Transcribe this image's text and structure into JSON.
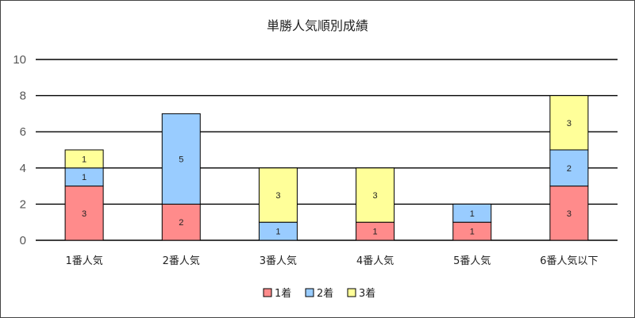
{
  "chart_data": {
    "type": "bar",
    "stacked": true,
    "title": "単勝人気順別成績",
    "categories": [
      "1番人気",
      "2番人気",
      "3番人気",
      "4番人気",
      "5番人気",
      "6番人気以下"
    ],
    "series": [
      {
        "name": "1着",
        "color": "#ff8b8b",
        "values": [
          3,
          2,
          0,
          1,
          1,
          3
        ]
      },
      {
        "name": "2着",
        "color": "#99ccff",
        "values": [
          1,
          5,
          1,
          0,
          1,
          2
        ]
      },
      {
        "name": "3着",
        "color": "#ffff99",
        "values": [
          1,
          0,
          3,
          3,
          0,
          3
        ]
      }
    ],
    "ylim": [
      0,
      10
    ],
    "yticks": [
      0,
      2,
      4,
      6,
      8,
      10
    ],
    "grid": true,
    "legend": "bottom"
  }
}
